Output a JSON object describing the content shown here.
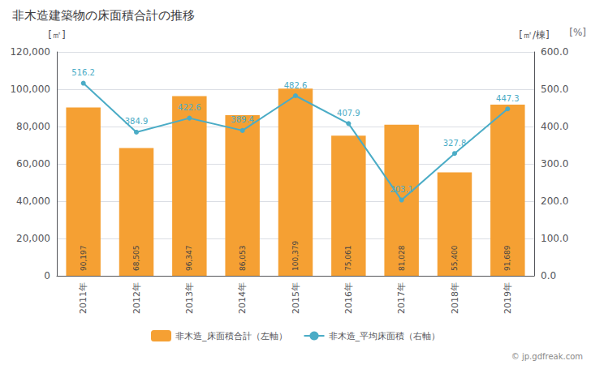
{
  "chart_data": {
    "type": "bar",
    "title": "非木造建築物の床面積合計の推移",
    "categories": [
      "2011年",
      "2012年",
      "2013年",
      "2014年",
      "2015年",
      "2016年",
      "2017年",
      "2018年",
      "2019年"
    ],
    "series": [
      {
        "name": "非木造_床面積合計（左軸）",
        "type": "bar",
        "color": "#F5A033",
        "values": [
          90197,
          68505,
          96347,
          86053,
          100379,
          75061,
          81028,
          55400,
          91689
        ],
        "value_labels": [
          "90,197",
          "68,505",
          "96,347",
          "86,053",
          "100,379",
          "75,061",
          "81,028",
          "55,400",
          "91,689"
        ]
      },
      {
        "name": "非木造_平均床面積（右軸）",
        "type": "line",
        "color": "#4BACC6",
        "axis": "y2",
        "marker": "circle",
        "values": [
          516.2,
          384.9,
          422.6,
          389.4,
          482.6,
          407.9,
          203.1,
          327.8,
          447.3
        ]
      }
    ],
    "ylabel": "[㎡]",
    "y2label": "[㎡/棟]",
    "annotations": [
      "[%]",
      "© jp.gdfreak.com"
    ],
    "ylim": [
      0,
      120000
    ],
    "yticks": [
      0,
      {
        "value": 20000,
        "label": "20,000"
      },
      {
        "value": 40000,
        "label": "40,000"
      },
      {
        "value": 60000,
        "label": "60,000"
      },
      {
        "value": 80000,
        "label": "80,000"
      },
      {
        "value": 100000,
        "label": "100,000"
      },
      {
        "value": 120000,
        "label": "120,000"
      }
    ],
    "y2lim": [
      0,
      600
    ],
    "y2ticks": [
      {
        "value": 0,
        "label": "0.0"
      },
      {
        "value": 100,
        "label": "100.0"
      },
      {
        "value": 200,
        "label": "200.0"
      },
      {
        "value": 300,
        "label": "300.0"
      },
      {
        "value": 400,
        "label": "400.0"
      },
      {
        "value": 500,
        "label": "500.0"
      },
      {
        "value": 600,
        "label": "600.0"
      }
    ],
    "grid": true,
    "legend": "bottom",
    "data_labels": true
  }
}
